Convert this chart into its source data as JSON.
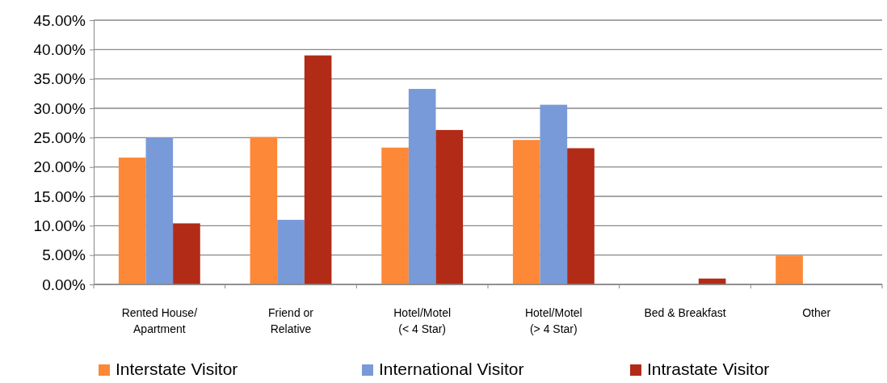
{
  "chart_data": {
    "type": "bar",
    "categories": [
      "Rented House/\nApartment",
      "Friend or\nRelative",
      "Hotel/Motel\n(< 4 Star)",
      "Hotel/Motel\n(> 4 Star)",
      "Bed & Breakfast",
      "Other"
    ],
    "series": [
      {
        "name": "Interstate Visitor",
        "color": "#fd8837",
        "values": [
          21.6,
          25.1,
          23.3,
          24.6,
          0,
          4.9
        ]
      },
      {
        "name": "International Visitor",
        "color": "#789ad8",
        "values": [
          25.0,
          11.0,
          33.3,
          30.6,
          0,
          0
        ]
      },
      {
        "name": "Intrastate Visitor",
        "color": "#b12b17",
        "values": [
          10.4,
          39.0,
          26.3,
          23.2,
          1.0,
          0
        ]
      }
    ],
    "ylim": [
      0,
      45
    ],
    "yticks": [
      {
        "value": 0,
        "label": "0.00%"
      },
      {
        "value": 5,
        "label": "5.00%"
      },
      {
        "value": 10,
        "label": "10.00%"
      },
      {
        "value": 15,
        "label": "15.00%"
      },
      {
        "value": 20,
        "label": "20.00%"
      },
      {
        "value": 25,
        "label": "25.00%"
      },
      {
        "value": 30,
        "label": "30.00%"
      },
      {
        "value": 35,
        "label": "35.00%"
      },
      {
        "value": 40,
        "label": "40.00%"
      },
      {
        "value": 45,
        "label": "45.00%"
      }
    ],
    "grid": "y",
    "legend": "bottom"
  }
}
